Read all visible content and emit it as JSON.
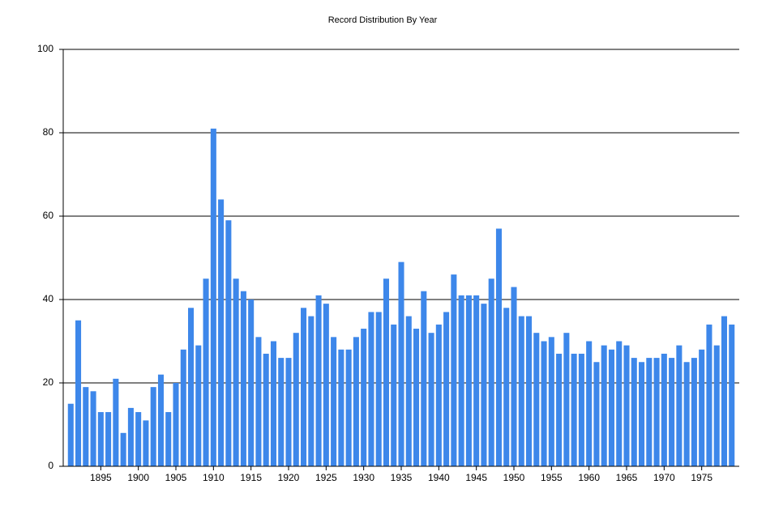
{
  "chart_data": {
    "type": "bar",
    "title": "Record Distribution By Year",
    "x": [
      1891,
      1892,
      1893,
      1894,
      1895,
      1896,
      1897,
      1898,
      1899,
      1900,
      1901,
      1902,
      1903,
      1904,
      1905,
      1906,
      1907,
      1908,
      1909,
      1910,
      1911,
      1912,
      1913,
      1914,
      1915,
      1916,
      1917,
      1918,
      1919,
      1920,
      1921,
      1922,
      1923,
      1924,
      1925,
      1926,
      1927,
      1928,
      1929,
      1930,
      1931,
      1932,
      1933,
      1934,
      1935,
      1936,
      1937,
      1938,
      1939,
      1940,
      1941,
      1942,
      1943,
      1944,
      1945,
      1946,
      1947,
      1948,
      1949,
      1950,
      1951,
      1952,
      1953,
      1954,
      1955,
      1956,
      1957,
      1958,
      1959,
      1960,
      1961,
      1962,
      1963,
      1964,
      1965,
      1966,
      1967,
      1968,
      1969,
      1970,
      1971,
      1972,
      1973,
      1974,
      1975,
      1976,
      1977,
      1978,
      1979
    ],
    "values": [
      15,
      35,
      19,
      18,
      13,
      13,
      21,
      8,
      14,
      13,
      11,
      19,
      22,
      13,
      20,
      28,
      38,
      29,
      45,
      81,
      64,
      59,
      45,
      42,
      40,
      31,
      27,
      30,
      26,
      26,
      32,
      38,
      36,
      41,
      39,
      31,
      28,
      28,
      31,
      33,
      37,
      37,
      45,
      34,
      49,
      36,
      33,
      42,
      32,
      34,
      37,
      46,
      41,
      41,
      41,
      39,
      45,
      57,
      38,
      43,
      36,
      36,
      32,
      30,
      31,
      27,
      32,
      27,
      27,
      30,
      25,
      29,
      28,
      30,
      29,
      26,
      25,
      26,
      26,
      27,
      26,
      29,
      25,
      26,
      28,
      34,
      29,
      36,
      34
    ],
    "color": "#3d87ea",
    "xlim": [
      1890,
      1980
    ],
    "xticks": [
      1895,
      1900,
      1905,
      1910,
      1915,
      1920,
      1925,
      1930,
      1935,
      1940,
      1945,
      1950,
      1955,
      1960,
      1965,
      1970,
      1975
    ],
    "ylim": [
      0,
      100
    ],
    "yticks": [
      0,
      20,
      40,
      60,
      80,
      100
    ],
    "grid": true
  }
}
